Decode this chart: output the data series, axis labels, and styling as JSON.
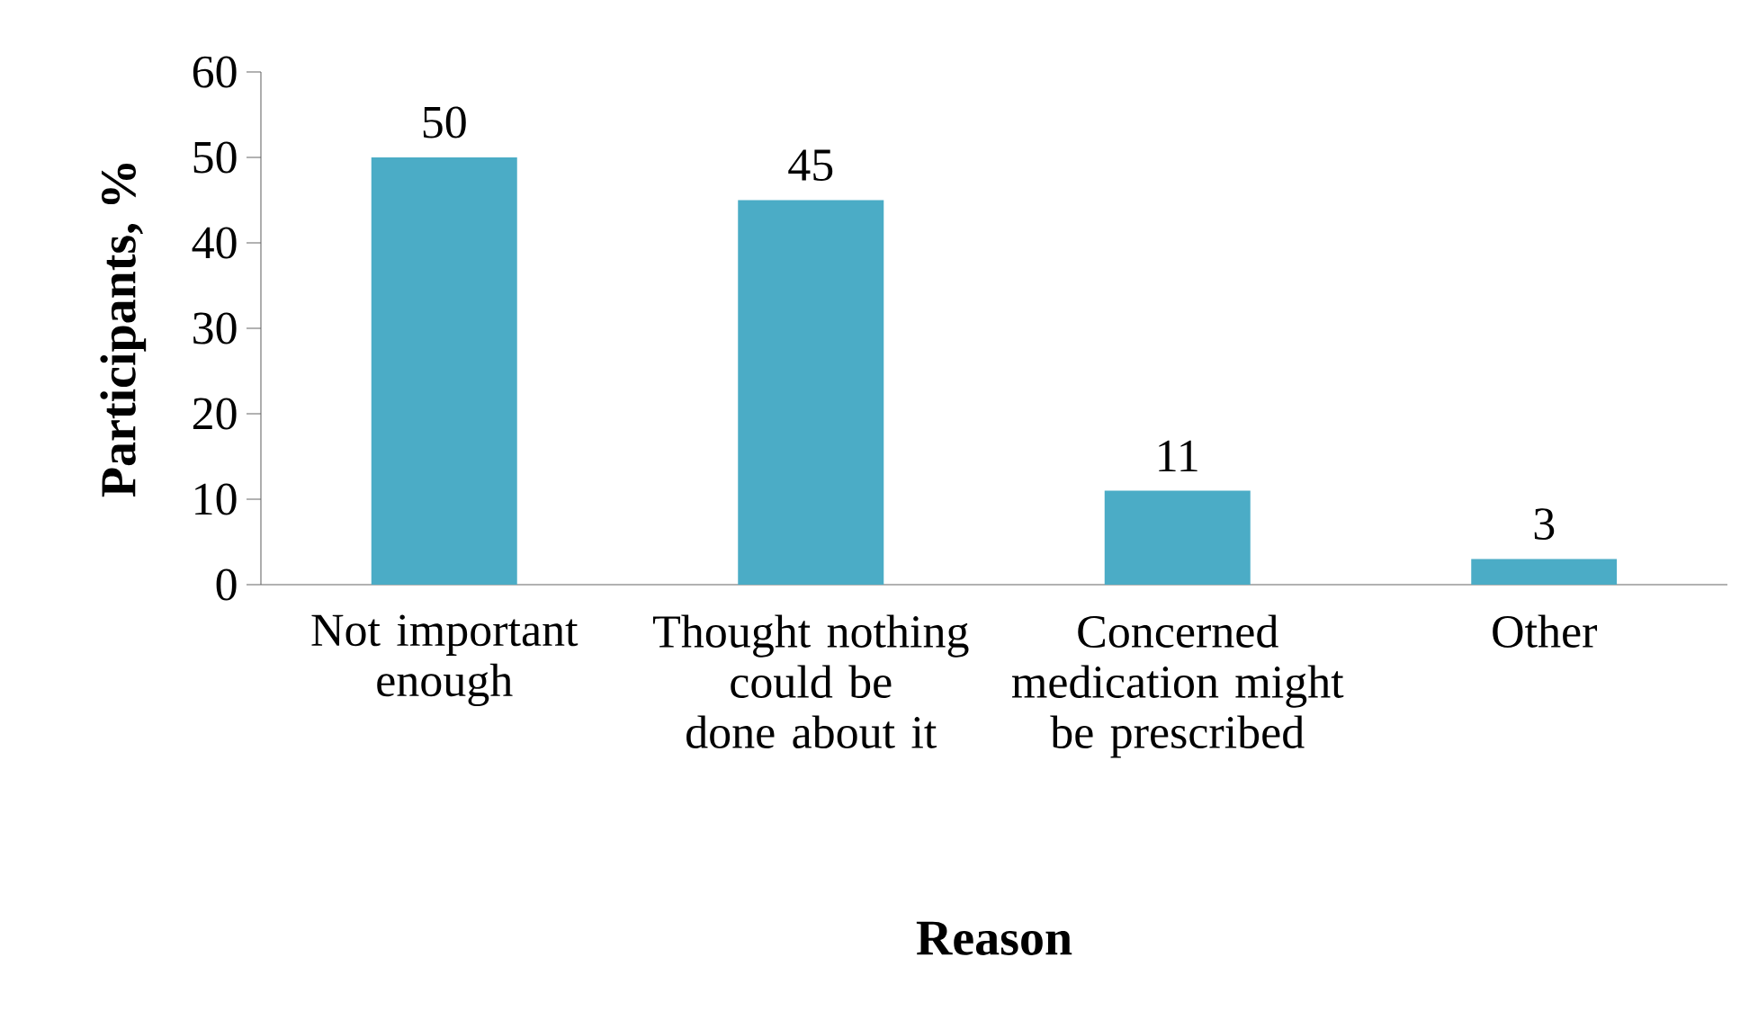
{
  "chart_data": {
    "type": "bar",
    "categories": [
      "Not important enough",
      "Thought nothing could be done about it",
      "Concerned medication might be prescribed",
      "Other"
    ],
    "values": [
      50,
      45,
      11,
      3
    ],
    "color": "#4bacc6",
    "xlabel": "Reason",
    "ylabel": "Participants, %",
    "ylim": [
      0,
      60
    ],
    "yticks": [
      0,
      10,
      20,
      30,
      40,
      50,
      60
    ],
    "data_labels": true,
    "grid": false
  }
}
